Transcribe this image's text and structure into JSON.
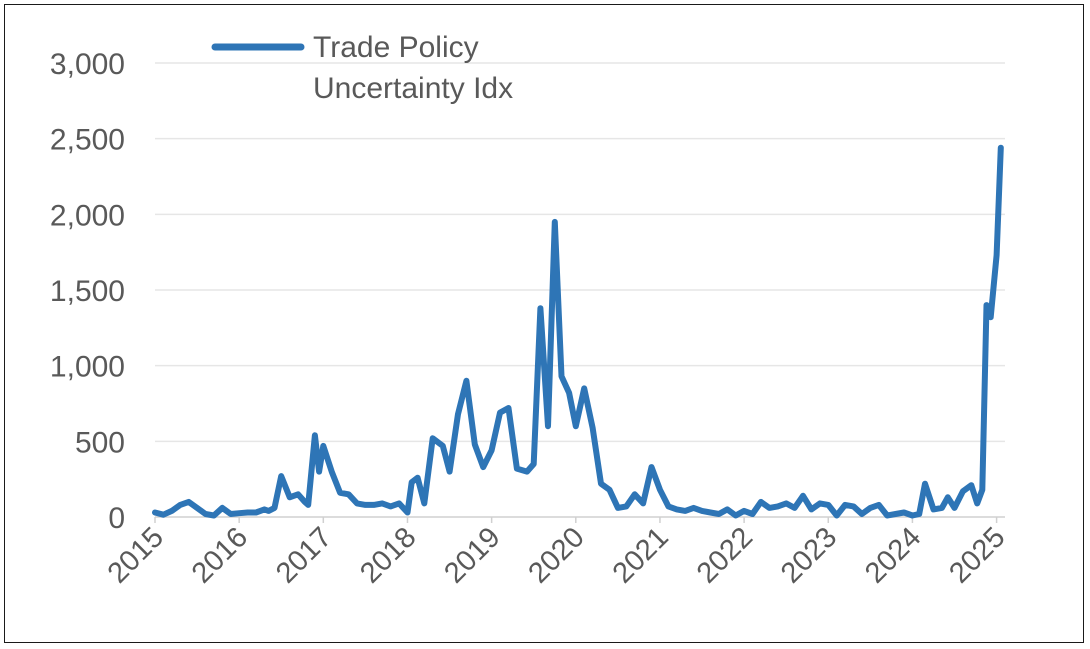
{
  "chart_data": {
    "type": "line",
    "title": "",
    "xlabel": "",
    "ylabel": "",
    "ylim": [
      0,
      3000
    ],
    "y_ticks": [
      0,
      500,
      1000,
      1500,
      2000,
      2500,
      3000
    ],
    "y_tick_labels": [
      "0",
      "500",
      "1,000",
      "1,500",
      "2,000",
      "2,500",
      "3,000"
    ],
    "xlim": [
      2015,
      2025.1
    ],
    "x_ticks": [
      2015,
      2016,
      2017,
      2018,
      2019,
      2020,
      2021,
      2022,
      2023,
      2024,
      2025
    ],
    "x_tick_labels": [
      "2015",
      "2016",
      "2017",
      "2018",
      "2019",
      "2020",
      "2021",
      "2022",
      "2023",
      "2024",
      "2025"
    ],
    "grid": true,
    "legend": "top-left",
    "series": [
      {
        "name": "Trade Policy Uncertainty Idx",
        "color": "#2e75b6",
        "x": [
          2015.0,
          2015.1,
          2015.2,
          2015.3,
          2015.4,
          2015.5,
          2015.6,
          2015.7,
          2015.8,
          2015.9,
          2016.0,
          2016.1,
          2016.2,
          2016.3,
          2016.35,
          2016.42,
          2016.5,
          2016.6,
          2016.7,
          2016.78,
          2016.82,
          2016.9,
          2016.95,
          2017.0,
          2017.1,
          2017.2,
          2017.3,
          2017.4,
          2017.5,
          2017.6,
          2017.7,
          2017.8,
          2017.9,
          2018.0,
          2018.05,
          2018.12,
          2018.2,
          2018.3,
          2018.42,
          2018.5,
          2018.6,
          2018.7,
          2018.8,
          2018.9,
          2019.0,
          2019.1,
          2019.2,
          2019.3,
          2019.42,
          2019.5,
          2019.58,
          2019.67,
          2019.75,
          2019.83,
          2019.92,
          2020.0,
          2020.1,
          2020.2,
          2020.3,
          2020.4,
          2020.5,
          2020.6,
          2020.7,
          2020.8,
          2020.9,
          2021.0,
          2021.1,
          2021.2,
          2021.3,
          2021.4,
          2021.5,
          2021.6,
          2021.7,
          2021.8,
          2021.9,
          2022.0,
          2022.1,
          2022.2,
          2022.3,
          2022.4,
          2022.5,
          2022.6,
          2022.7,
          2022.8,
          2022.9,
          2023.0,
          2023.1,
          2023.2,
          2023.3,
          2023.4,
          2023.5,
          2023.6,
          2023.7,
          2023.8,
          2023.9,
          2024.0,
          2024.08,
          2024.15,
          2024.25,
          2024.35,
          2024.42,
          2024.5,
          2024.6,
          2024.7,
          2024.77,
          2024.83,
          2024.88,
          2024.93,
          2025.0,
          2025.05
        ],
        "y": [
          30,
          15,
          40,
          80,
          100,
          60,
          20,
          10,
          60,
          20,
          25,
          30,
          30,
          50,
          40,
          60,
          270,
          130,
          150,
          100,
          80,
          540,
          300,
          470,
          300,
          160,
          150,
          90,
          80,
          80,
          90,
          70,
          90,
          30,
          230,
          260,
          90,
          520,
          470,
          300,
          680,
          900,
          480,
          330,
          440,
          690,
          720,
          320,
          300,
          350,
          1380,
          600,
          1950,
          930,
          820,
          600,
          850,
          590,
          220,
          180,
          60,
          70,
          150,
          90,
          330,
          180,
          70,
          50,
          40,
          60,
          40,
          30,
          20,
          50,
          10,
          40,
          20,
          100,
          60,
          70,
          90,
          60,
          140,
          50,
          90,
          80,
          10,
          80,
          70,
          20,
          60,
          80,
          10,
          20,
          30,
          10,
          20,
          220,
          50,
          60,
          130,
          60,
          170,
          210,
          90,
          180,
          1400,
          1320,
          1730,
          2440
        ]
      }
    ]
  }
}
